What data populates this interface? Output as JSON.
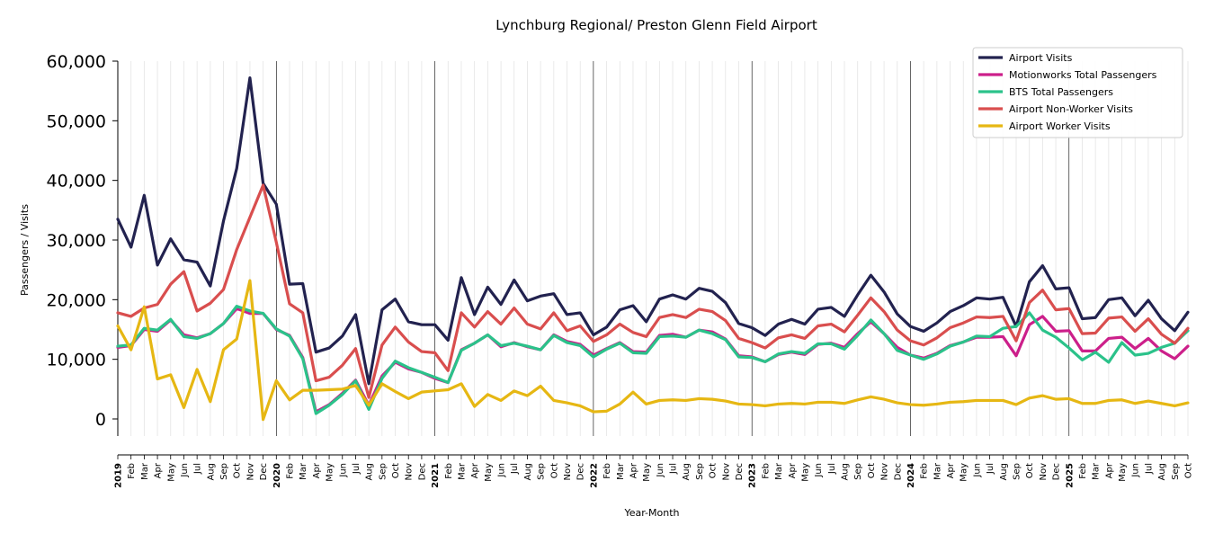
{
  "chart_data": {
    "type": "line",
    "title": "Lynchburg Regional/ Preston Glenn Field Airport",
    "xlabel": "Year-Month",
    "ylabel": "Passengers / Visits",
    "ylim": [
      -3000,
      60000
    ],
    "yticks": [
      0,
      10000,
      20000,
      30000,
      40000,
      50000,
      60000
    ],
    "ytick_labels": [
      "0",
      "10,000",
      "20,000",
      "30,000",
      "40,000",
      "50,000",
      "60,000"
    ],
    "year_labels": [
      "2019",
      "2020",
      "2021",
      "2022",
      "2023",
      "2024",
      "2025"
    ],
    "month_labels": [
      "Feb",
      "Mar",
      "Apr",
      "May",
      "Jun",
      "Jul",
      "Aug",
      "Sep",
      "Oct",
      "Nov",
      "Dec"
    ],
    "last_year_months": 10,
    "grid": "vertical",
    "legend_position": "top-right",
    "series": [
      {
        "name": "Airport Visits",
        "color": "#22224f",
        "values": [
          33500,
          28800,
          37500,
          25800,
          30200,
          26700,
          26300,
          22300,
          33200,
          42000,
          57200,
          39500,
          36000,
          22600,
          22700,
          11200,
          11900,
          13900,
          17500,
          5900,
          18300,
          20100,
          16300,
          15800,
          15800,
          13200,
          23700,
          17500,
          22100,
          19200,
          23300,
          19800,
          20600,
          21000,
          17500,
          17800,
          14100,
          15400,
          18300,
          19000,
          16300,
          20100,
          20800,
          20100,
          21900,
          21400,
          19500,
          16000,
          15300,
          14000,
          15900,
          16700,
          15900,
          18400,
          18700,
          17200,
          20800,
          24100,
          21300,
          17600,
          15500,
          14700,
          16100,
          18000,
          19000,
          20300,
          20100,
          20400,
          15500,
          23000,
          25700,
          21800,
          22000,
          16800,
          17000,
          20000,
          20300,
          17300,
          19900,
          16800,
          14800,
          17900
        ]
      },
      {
        "name": "Motionworks Total Passengers",
        "color": "#cc1f8a",
        "values": [
          12000,
          12300,
          15000,
          14700,
          16600,
          14100,
          13600,
          14300,
          16000,
          18500,
          17700,
          17700,
          15000,
          14000,
          10300,
          1200,
          2400,
          4300,
          6500,
          2300,
          7200,
          9500,
          8400,
          7800,
          6800,
          6100,
          11600,
          12700,
          14100,
          12100,
          12800,
          12100,
          11600,
          14100,
          13000,
          12500,
          10700,
          11800,
          12800,
          11300,
          11200,
          14000,
          14200,
          13700,
          14900,
          14600,
          13400,
          10600,
          10400,
          9600,
          10800,
          11200,
          10800,
          12500,
          12700,
          12000,
          14300,
          16300,
          14300,
          12000,
          10700,
          10200,
          11000,
          12300,
          12900,
          13700,
          13700,
          13800,
          10600,
          15800,
          17200,
          14700,
          14800,
          11400,
          11400,
          13500,
          13700,
          11800,
          13500,
          11400,
          10100,
          12200
        ]
      },
      {
        "name": "BTS Total Passengers",
        "color": "#2bc28a",
        "values": [
          12200,
          12400,
          15200,
          14900,
          16700,
          13800,
          13500,
          14300,
          16000,
          18900,
          18100,
          17700,
          15100,
          13900,
          10100,
          900,
          2300,
          4100,
          6400,
          1600,
          6800,
          9700,
          8600,
          7800,
          7000,
          6100,
          11500,
          12700,
          14100,
          12300,
          12700,
          12200,
          11600,
          14000,
          12800,
          12300,
          10400,
          11700,
          12700,
          11100,
          11000,
          13800,
          13900,
          13700,
          14900,
          14300,
          13300,
          10400,
          10300,
          9600,
          10900,
          11300,
          11000,
          12600,
          12600,
          11700,
          14000,
          16600,
          14300,
          11500,
          10700,
          10000,
          10900,
          12200,
          12900,
          13900,
          13800,
          15200,
          15500,
          17800,
          14900,
          13700,
          11900,
          9900,
          11200,
          9500,
          12800,
          10700,
          11000,
          12000,
          12700,
          14800
        ]
      },
      {
        "name": "Airport Non-Worker Visits",
        "color": "#d94e4e",
        "values": [
          17800,
          17200,
          18600,
          19200,
          22600,
          24700,
          18100,
          19400,
          21700,
          28400,
          33800,
          39200,
          29600,
          19300,
          17800,
          6400,
          7000,
          9000,
          11800,
          3600,
          12400,
          15400,
          12900,
          11300,
          11100,
          8100,
          17800,
          15400,
          18000,
          15900,
          18600,
          15900,
          15100,
          17800,
          14800,
          15600,
          13000,
          14100,
          15900,
          14500,
          13800,
          17000,
          17500,
          17000,
          18400,
          18000,
          16500,
          13500,
          12800,
          11900,
          13600,
          14100,
          13500,
          15600,
          15900,
          14600,
          17400,
          20300,
          18000,
          14900,
          13100,
          12400,
          13600,
          15300,
          16100,
          17100,
          17000,
          17200,
          13100,
          19500,
          21600,
          18300,
          18500,
          14300,
          14400,
          16900,
          17100,
          14700,
          16800,
          14200,
          12700,
          15200
        ]
      },
      {
        "name": "Airport Worker Visits",
        "color": "#e6b713",
        "values": [
          15600,
          11600,
          18800,
          6700,
          7400,
          1900,
          8300,
          2900,
          11600,
          13400,
          23200,
          -100,
          6400,
          3200,
          4800,
          4800,
          4900,
          5000,
          5600,
          2300,
          5900,
          4600,
          3400,
          4500,
          4700,
          4900,
          5900,
          2100,
          4100,
          3100,
          4700,
          3900,
          5500,
          3100,
          2700,
          2200,
          1200,
          1300,
          2500,
          4500,
          2500,
          3100,
          3200,
          3100,
          3400,
          3300,
          3000,
          2500,
          2400,
          2200,
          2500,
          2600,
          2500,
          2800,
          2800,
          2600,
          3200,
          3700,
          3300,
          2700,
          2400,
          2300,
          2500,
          2800,
          2900,
          3100,
          3100,
          3100,
          2400,
          3500,
          3900,
          3300,
          3400,
          2600,
          2600,
          3100,
          3200,
          2600,
          3000,
          2600,
          2200,
          2700
        ]
      }
    ]
  }
}
